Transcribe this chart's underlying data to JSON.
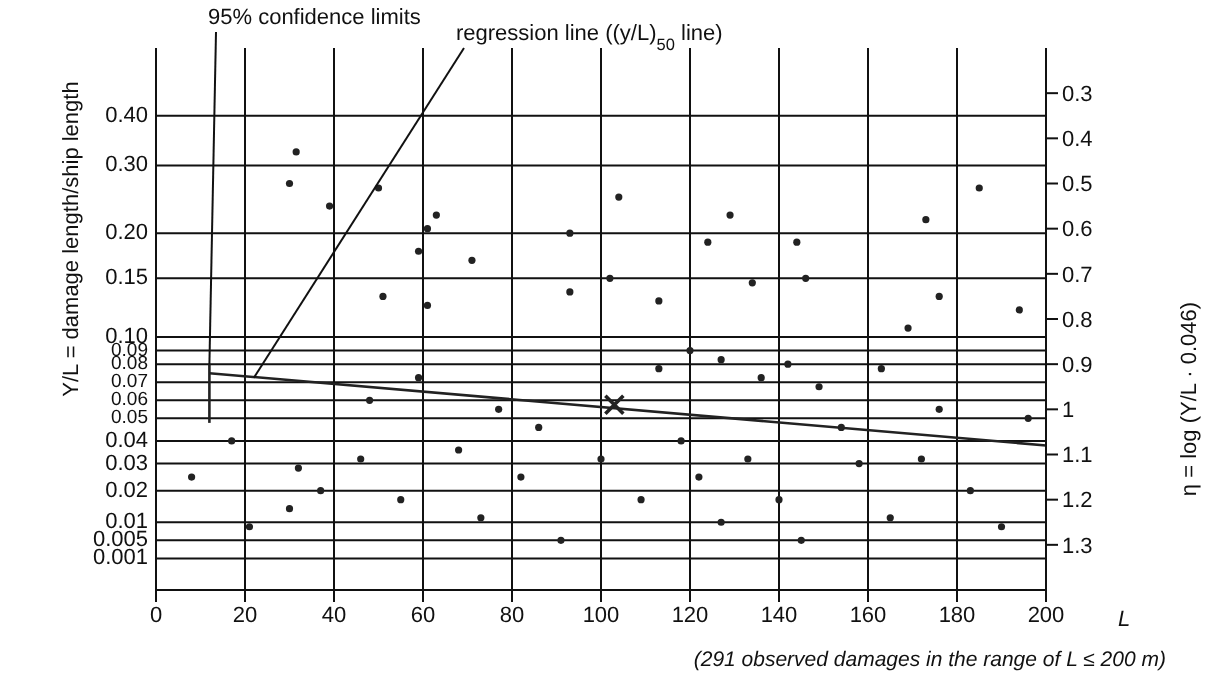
{
  "chart_data": {
    "type": "scatter",
    "xlabel": "L",
    "y2label": "Y/L = damage length/ship length",
    "ylabel": "η = log (Y/L · 0.046)",
    "xlim": [
      0,
      200
    ],
    "xticks": [
      0,
      20,
      40,
      60,
      80,
      100,
      120,
      140,
      160,
      180,
      200
    ],
    "ylim": [
      1.4,
      0.2
    ],
    "yticks": [
      0.3,
      0.4,
      0.5,
      0.6,
      0.7,
      0.8,
      0.9,
      1.0,
      1.1,
      1.2,
      1.3
    ],
    "ref_lines": [
      {
        "axis": "y",
        "value": 0.35
      },
      {
        "axis": "y",
        "value": 0.46
      },
      {
        "axis": "y",
        "value": 0.61
      },
      {
        "axis": "y",
        "value": 0.71
      },
      {
        "axis": "y",
        "value": 0.84
      },
      {
        "axis": "y",
        "value": 0.87
      },
      {
        "axis": "y",
        "value": 0.9
      },
      {
        "axis": "y",
        "value": 0.94
      },
      {
        "axis": "y",
        "value": 0.98
      },
      {
        "axis": "y",
        "value": 1.02
      },
      {
        "axis": "y",
        "value": 1.07
      },
      {
        "axis": "y",
        "value": 1.12
      },
      {
        "axis": "y",
        "value": 1.18
      },
      {
        "axis": "y",
        "value": 1.25
      },
      {
        "axis": "y",
        "value": 1.29
      },
      {
        "axis": "y",
        "value": 1.33
      }
    ],
    "grid": "x",
    "legend": false,
    "annotations": [
      {
        "text": "95% confidence limits",
        "x": 12,
        "y": 0.9
      },
      {
        "text": "regression line ((y/L)$_{50}$ line)",
        "x": 22,
        "y": 0.93
      },
      "(291 observed damages in the range of L ≤ 200 m)",
      {
        "text": "0.40",
        "x": 0,
        "y": 0.35
      },
      {
        "text": "0.30",
        "x": 0,
        "y": 0.46
      },
      {
        "text": "0.20",
        "x": 0,
        "y": 0.61
      },
      {
        "text": "0.15",
        "x": 0,
        "y": 0.71
      },
      {
        "text": "0.10",
        "x": 0,
        "y": 0.84
      },
      {
        "text": "0.09",
        "x": 0,
        "y": 0.87
      },
      {
        "text": "0.08",
        "x": 0,
        "y": 0.9
      },
      {
        "text": "0.07",
        "x": 0,
        "y": 0.94
      },
      {
        "text": "0.06",
        "x": 0,
        "y": 0.98
      },
      {
        "text": "0.05",
        "x": 0,
        "y": 1.02
      },
      {
        "text": "0.04",
        "x": 0,
        "y": 1.07
      },
      {
        "text": "0.03",
        "x": 0,
        "y": 1.12
      },
      {
        "text": "0.02",
        "x": 0,
        "y": 1.18
      },
      {
        "text": "0.01",
        "x": 0,
        "y": 1.25
      },
      {
        "text": "0.005",
        "x": 0,
        "y": 1.29
      },
      {
        "text": "0.001",
        "x": 0,
        "y": 1.33
      }
    ],
    "series": [
      {
        "color": "#222222",
        "marker": "circle",
        "x": [
          31.5,
          30,
          39,
          50,
          63,
          61,
          59,
          51,
          61,
          71,
          93,
          93,
          104,
          102,
          113,
          124,
          129,
          134,
          144,
          146,
          173,
          176,
          169,
          194,
          185,
          48,
          59,
          77,
          86,
          68,
          46,
          32,
          30,
          37,
          55,
          73,
          82,
          91,
          100,
          109,
          118,
          122,
          127,
          133,
          140,
          145,
          149,
          154,
          158,
          165,
          172,
          176,
          183,
          190,
          196,
          113,
          120,
          127,
          136,
          142,
          17,
          21,
          8,
          163
        ],
        "values": [
          0.43,
          0.5,
          0.55,
          0.51,
          0.57,
          0.6,
          0.65,
          0.75,
          0.77,
          0.67,
          0.61,
          0.74,
          0.53,
          0.71,
          0.76,
          0.63,
          0.57,
          0.72,
          0.63,
          0.71,
          0.58,
          0.75,
          0.82,
          0.78,
          0.51,
          0.98,
          0.93,
          1.0,
          1.04,
          1.09,
          1.11,
          1.13,
          1.22,
          1.18,
          1.2,
          1.24,
          1.15,
          1.29,
          1.11,
          1.2,
          1.07,
          1.15,
          1.25,
          1.11,
          1.2,
          1.29,
          0.95,
          1.04,
          1.12,
          1.24,
          1.11,
          1.0,
          1.18,
          1.26,
          1.02,
          0.91,
          0.87,
          0.89,
          0.93,
          0.9,
          1.07,
          1.26,
          1.15,
          0.91
        ]
      },
      {
        "type": "line",
        "color": "#222222",
        "marker": "none",
        "x": [
          12,
          200
        ],
        "values": [
          0.92,
          1.08
        ]
      },
      {
        "type": "line",
        "color": "#222222",
        "marker": "none",
        "x": [
          12,
          12
        ],
        "values": [
          0.9,
          1.03
        ]
      },
      {
        "type": "scatter",
        "color": "#222222",
        "marker": "cross",
        "x": [
          103
        ],
        "values": [
          0.99
        ]
      }
    ]
  }
}
